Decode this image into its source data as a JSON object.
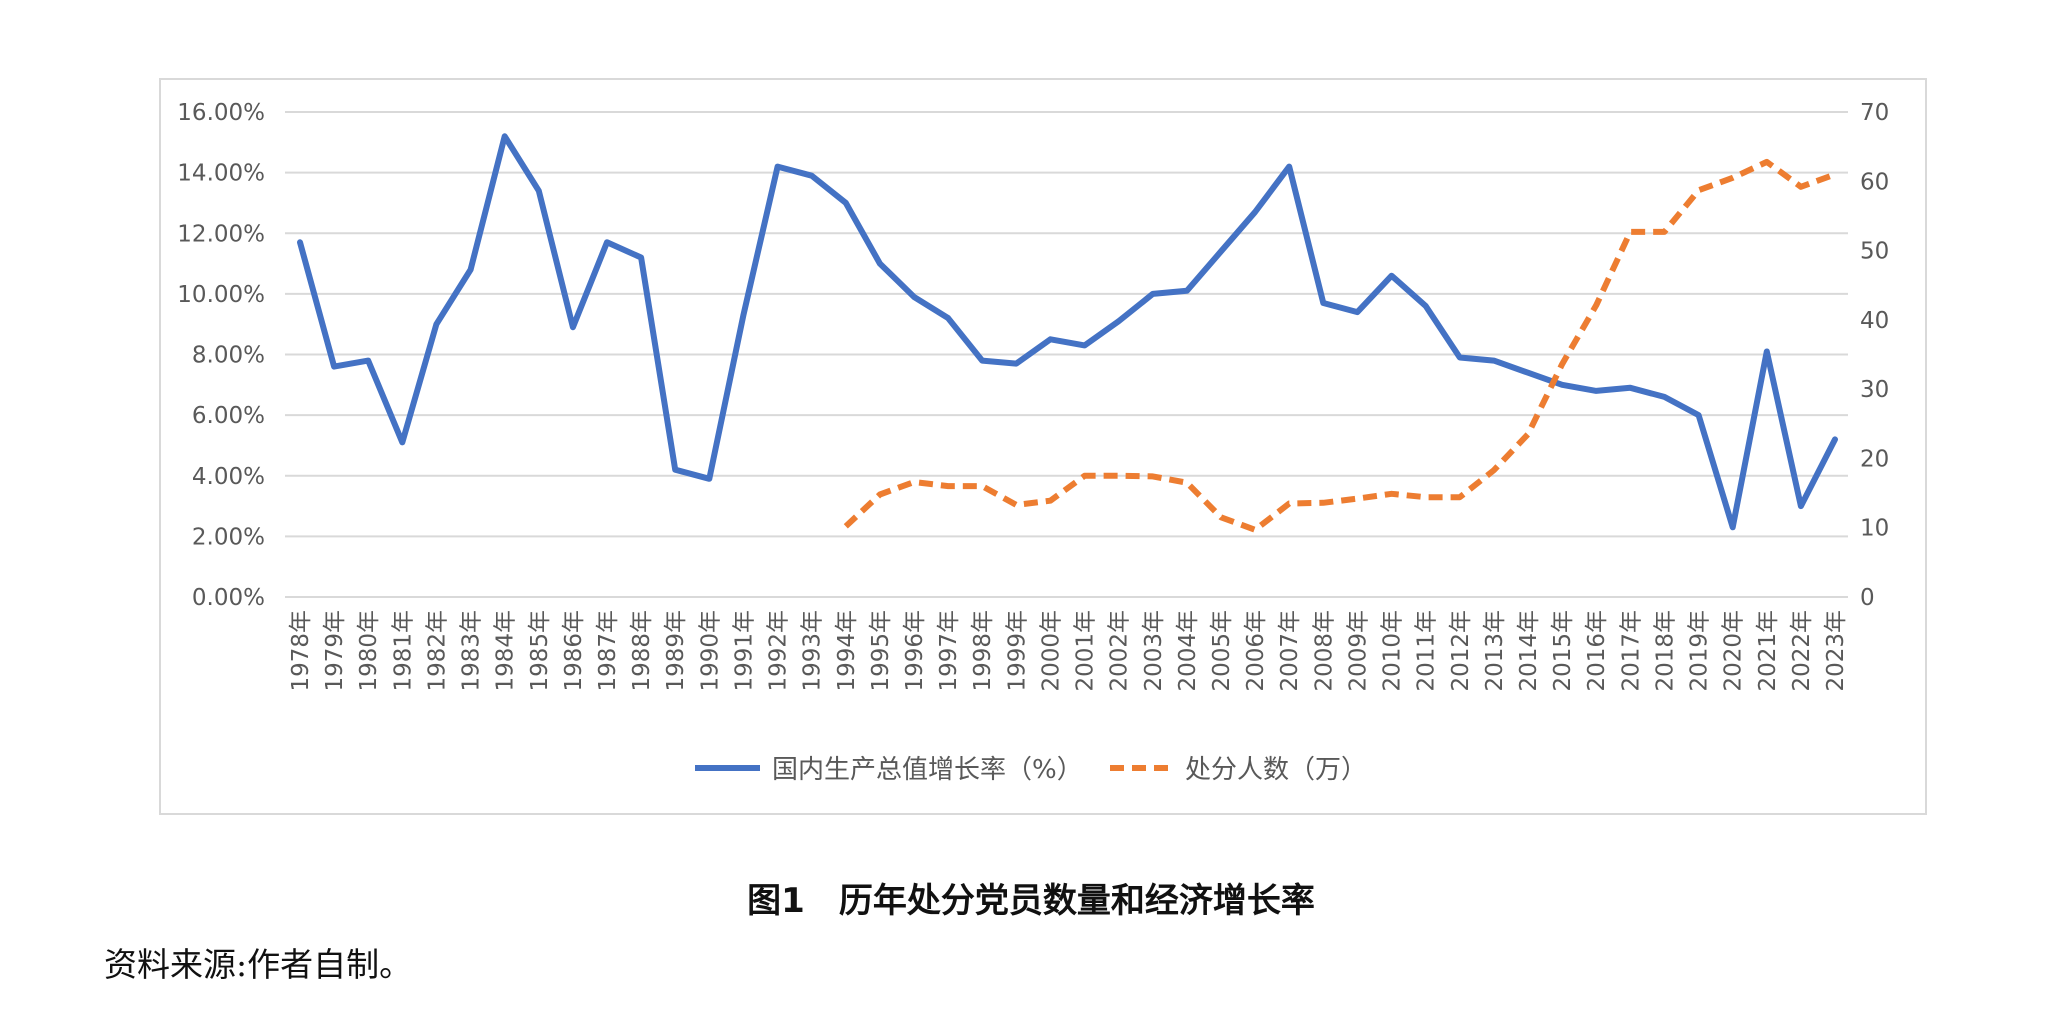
{
  "figure": {
    "caption": "图1　历年处分党员数量和经济增长率",
    "source_note": "资料来源:作者自制。"
  },
  "chart_data": {
    "type": "line",
    "grid": true,
    "legend_position": "bottom",
    "categories": [
      "1978年",
      "1979年",
      "1980年",
      "1981年",
      "1982年",
      "1983年",
      "1984年",
      "1985年",
      "1986年",
      "1987年",
      "1988年",
      "1989年",
      "1990年",
      "1991年",
      "1992年",
      "1993年",
      "1994年",
      "1995年",
      "1996年",
      "1997年",
      "1998年",
      "1999年",
      "2000年",
      "2001年",
      "2002年",
      "2003年",
      "2004年",
      "2005年",
      "2006年",
      "2007年",
      "2008年",
      "2009年",
      "2010年",
      "2011年",
      "2012年",
      "2013年",
      "2014年",
      "2015年",
      "2016年",
      "2017年",
      "2018年",
      "2019年",
      "2020年",
      "2021年",
      "2022年",
      "2023年"
    ],
    "y_left": {
      "min": 0,
      "max": 16,
      "step": 2,
      "tick_labels": [
        "0.00%",
        "2.00%",
        "4.00%",
        "6.00%",
        "8.00%",
        "10.00%",
        "12.00%",
        "14.00%",
        "16.00%"
      ]
    },
    "y_right": {
      "min": 0,
      "max": 70,
      "step": 10,
      "tick_labels": [
        "0",
        "10",
        "20",
        "30",
        "40",
        "50",
        "60",
        "70"
      ]
    },
    "series": [
      {
        "name": "国内生产总值增长率（%）",
        "axis": "left",
        "color": "#4472C4",
        "style": "solid",
        "values": [
          11.7,
          7.6,
          7.8,
          5.1,
          9.0,
          10.8,
          15.2,
          13.4,
          8.9,
          11.7,
          11.2,
          4.2,
          3.9,
          9.3,
          14.2,
          13.9,
          13.0,
          11.0,
          9.9,
          9.2,
          7.8,
          7.7,
          8.5,
          8.3,
          9.1,
          10.0,
          10.1,
          11.4,
          12.7,
          14.2,
          9.7,
          9.4,
          10.6,
          9.6,
          7.9,
          7.8,
          7.4,
          7.0,
          6.8,
          6.9,
          6.6,
          6.0,
          2.3,
          8.1,
          3.0,
          5.2
        ]
      },
      {
        "name": "处分人数（万）",
        "axis": "right",
        "color": "#ED7D31",
        "style": "dashed",
        "values": [
          null,
          null,
          null,
          null,
          null,
          null,
          null,
          null,
          null,
          null,
          null,
          null,
          null,
          null,
          null,
          null,
          10.2,
          14.8,
          16.6,
          16.0,
          16.0,
          13.3,
          13.9,
          17.5,
          17.5,
          17.4,
          16.5,
          11.5,
          9.7,
          13.5,
          13.6,
          14.2,
          14.9,
          14.4,
          14.4,
          18.3,
          23.5,
          33.6,
          42.1,
          52.7,
          52.7,
          58.7,
          60.5,
          62.8,
          59.2,
          61.0
        ]
      }
    ]
  }
}
